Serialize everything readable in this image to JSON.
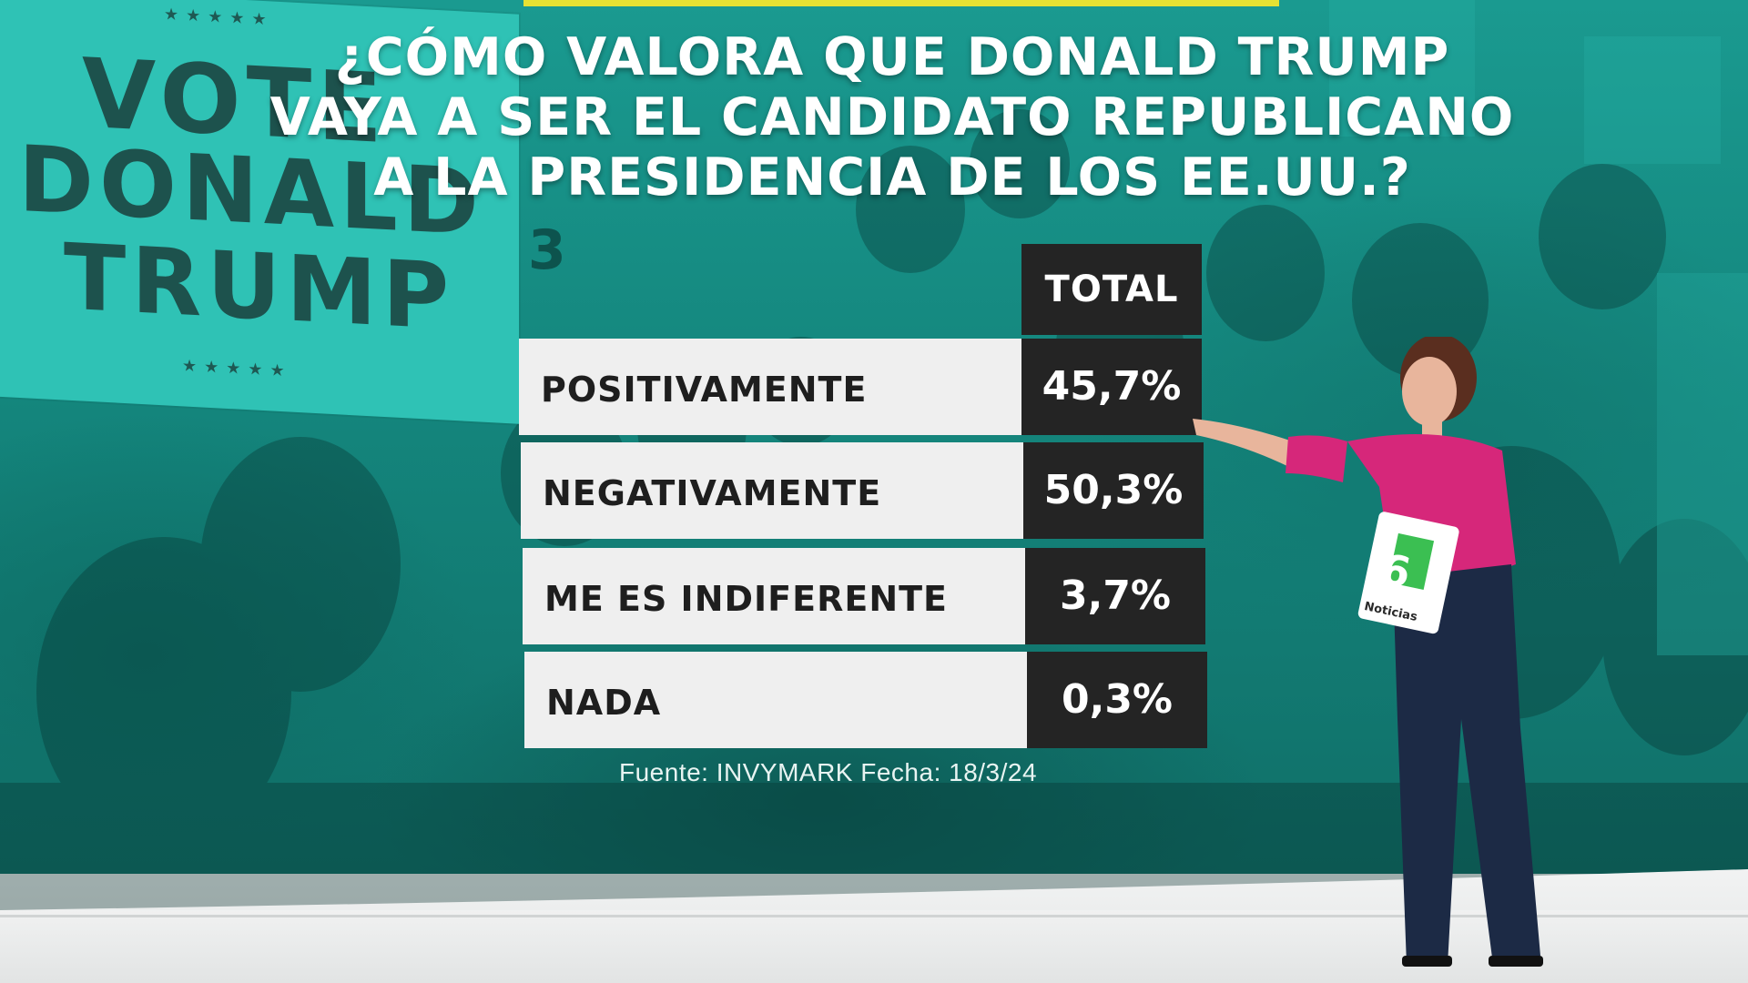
{
  "screen": {
    "title_lines": [
      "¿CÓMO VALORA QUE DONALD TRUMP",
      "VAYA A SER EL CANDIDATO REPUBLICANO",
      "A LA PRESIDENCIA DE LOS  EE.UU.?"
    ],
    "background_sign": {
      "lines": [
        "VOTE",
        "DONALD",
        "TRUMP"
      ],
      "stars": "★★★★★"
    },
    "background_sign_number": "3",
    "colors": {
      "wall_teal": "#1a9a90",
      "label_cell": "#efefef",
      "value_cell": "#242424",
      "accent_bar": "#e6e233",
      "presenter_blouse": "#d6277a",
      "presenter_jeans": "#1c2a45"
    }
  },
  "poll": {
    "column_header": "TOTAL",
    "rows": [
      {
        "label": "POSITIVAMENTE",
        "value": "45,7%"
      },
      {
        "label": "NEGATIVAMENTE",
        "value": "50,3%"
      },
      {
        "label": "ME ES INDIFERENTE",
        "value": "3,7%"
      },
      {
        "label": "NADA",
        "value": "0,3%"
      }
    ],
    "source": "Fuente: INVYMARK Fecha: 18/3/24"
  },
  "presenter": {
    "card_logo": "6",
    "card_text": "Noticias"
  }
}
